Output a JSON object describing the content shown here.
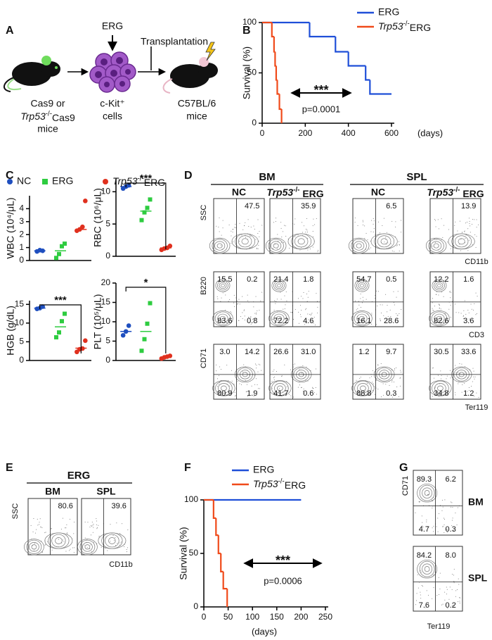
{
  "panel_labels": [
    "A",
    "B",
    "C",
    "D",
    "E",
    "F",
    "G"
  ],
  "schematic": {
    "erg": "ERG",
    "transplantation": "Transplantation",
    "donor": [
      "Cas9 or",
      "Trp53-/-Cas9",
      "mice"
    ],
    "cells": [
      "c-Kit⁺",
      "cells"
    ],
    "recipient": [
      "C57BL/6",
      "mice"
    ]
  },
  "strip_legend": [
    {
      "name": "NC",
      "color": "#1f4fbf",
      "marker": "circle"
    },
    {
      "name": "ERG",
      "color": "#2ecc40",
      "marker": "square"
    },
    {
      "name": "Trp53-/-ERG",
      "color": "#e0301e",
      "marker": "circle"
    }
  ],
  "chart_data": [
    {
      "type": "survival",
      "ylabel": "Survival (%)",
      "x_unit": "(days)",
      "annotation": "***",
      "p_value": "p=0.0001",
      "xlim": [
        0,
        600
      ],
      "xticks": [
        0,
        200,
        400,
        600
      ],
      "ylim": [
        0,
        100
      ],
      "yticks": [
        0,
        50,
        100
      ],
      "series": [
        {
          "name": "ERG",
          "color": "#1f4fd8",
          "x": [
            0,
            220,
            340,
            400,
            480,
            500,
            600
          ],
          "values": [
            100,
            86,
            71,
            57,
            43,
            29,
            29
          ]
        },
        {
          "name": "Trp53-/-ERG",
          "color": "#f04a1a",
          "x": [
            0,
            45,
            55,
            60,
            65,
            70,
            80,
            90
          ],
          "values": [
            100,
            86,
            71,
            57,
            43,
            29,
            14,
            0
          ]
        }
      ]
    },
    {
      "type": "strip",
      "ylabel": "WBC (10⁴/μL)",
      "ylim": [
        0,
        5
      ],
      "yticks": [
        0,
        1,
        2,
        3,
        4
      ],
      "groups": [
        {
          "color": "#1f4fbf",
          "marker": "circle",
          "values": [
            0.7,
            0.8,
            0.75
          ],
          "mean": 0.75
        },
        {
          "color": "#2ecc40",
          "marker": "square",
          "values": [
            0.2,
            0.5,
            1.1,
            1.3
          ],
          "mean": 0.75
        },
        {
          "color": "#e0301e",
          "marker": "circle",
          "values": [
            2.3,
            2.4,
            2.6,
            4.6
          ],
          "mean": 2.4
        }
      ]
    },
    {
      "type": "strip",
      "ylabel": "RBC (10⁶/μL)",
      "ylim": [
        0,
        12
      ],
      "yticks": [
        0,
        5,
        10
      ],
      "significance": "***",
      "groups": [
        {
          "color": "#1f4fbf",
          "marker": "circle",
          "values": [
            10.5,
            10.8,
            11.0
          ],
          "mean": 10.8
        },
        {
          "color": "#2ecc40",
          "marker": "square",
          "values": [
            5.6,
            6.8,
            7.5,
            8.8
          ],
          "mean": 7
        },
        {
          "color": "#e0301e",
          "marker": "circle",
          "values": [
            1.0,
            1.2,
            1.3,
            1.6
          ],
          "mean": 1.3
        }
      ]
    },
    {
      "type": "strip",
      "ylabel": "HGB (g/dL)",
      "ylim": [
        0,
        16
      ],
      "yticks": [
        0,
        5,
        10,
        15
      ],
      "significance": "***",
      "groups": [
        {
          "color": "#1f4fbf",
          "marker": "circle",
          "values": [
            13.8,
            14.0,
            14.4
          ],
          "mean": 14
        },
        {
          "color": "#2ecc40",
          "marker": "square",
          "values": [
            6.2,
            7.5,
            10.5,
            12.5
          ],
          "mean": 9
        },
        {
          "color": "#e0301e",
          "marker": "circle",
          "values": [
            2.3,
            3.0,
            3.2,
            5.3
          ],
          "mean": 3.3
        }
      ]
    },
    {
      "type": "strip",
      "ylabel": "PLT (10⁵/μL)",
      "ylim": [
        0,
        20
      ],
      "yticks": [
        0,
        5,
        10,
        15,
        20
      ],
      "significance": "*",
      "groups": [
        {
          "color": "#1f4fbf",
          "marker": "circle",
          "values": [
            6.5,
            7.5,
            9
          ],
          "mean": 7.5
        },
        {
          "color": "#2ecc40",
          "marker": "square",
          "values": [
            2.5,
            5.5,
            9.5,
            14.8
          ],
          "mean": 7.5
        },
        {
          "color": "#e0301e",
          "marker": "circle",
          "values": [
            0.5,
            0.8,
            1,
            1.2
          ],
          "mean": 0.8
        }
      ]
    },
    {
      "type": "survival",
      "ylabel": "Survival (%)",
      "x_unit": "(days)",
      "annotation": "***",
      "p_value": "p=0.0006",
      "xlim": [
        0,
        250
      ],
      "xticks": [
        0,
        50,
        100,
        150,
        200,
        250
      ],
      "ylim": [
        0,
        100
      ],
      "yticks": [
        0,
        50,
        100
      ],
      "series": [
        {
          "name": "ERG",
          "color": "#1f4fd8",
          "x": [
            0,
            200
          ],
          "values": [
            100,
            100
          ]
        },
        {
          "name": "Trp53-/-ERG",
          "color": "#f04a1a",
          "x": [
            0,
            20,
            25,
            30,
            35,
            40,
            48
          ],
          "values": [
            100,
            83,
            67,
            50,
            33,
            17,
            0
          ]
        }
      ]
    }
  ],
  "flow_d": {
    "groups": [
      {
        "name": "BM",
        "columns": [
          "NC",
          "Trp53-/- ERG"
        ]
      },
      {
        "name": "SPL",
        "columns": [
          "NC",
          "Trp53-/- ERG"
        ]
      }
    ],
    "rows": [
      {
        "y_label": "SSC",
        "x_label": "CD11b",
        "values": [
          [
            "47.5"
          ],
          [
            "35.9"
          ],
          [
            "6.5"
          ],
          [
            "13.9"
          ]
        ]
      },
      {
        "y_label": "B220",
        "x_label": "CD3",
        "values": [
          [
            "15.5",
            "0.2",
            "83.6",
            "0.8"
          ],
          [
            "21.4",
            "1.8",
            "72.2",
            "4.6"
          ],
          [
            "54.7",
            "0.5",
            "16.1",
            "28.6"
          ],
          [
            "12.2",
            "1.6",
            "82.6",
            "3.6"
          ]
        ]
      },
      {
        "y_label": "CD71",
        "x_label": "Ter119",
        "values": [
          [
            "3.0",
            "14.2",
            "80.9",
            "1.9"
          ],
          [
            "26.6",
            "31.0",
            "41.7",
            "0.6"
          ],
          [
            "1.2",
            "9.7",
            "88.8",
            "0.3"
          ],
          [
            "30.5",
            "33.6",
            "34.8",
            "1.2"
          ]
        ]
      }
    ]
  },
  "flow_e": {
    "title": "ERG",
    "y_label": "SSC",
    "x_label": "CD11b",
    "panels": [
      {
        "name": "BM",
        "value": "80.6"
      },
      {
        "name": "SPL",
        "value": "39.6"
      }
    ]
  },
  "flow_g": {
    "y_label": "CD71",
    "x_label": "Ter119",
    "panels": [
      {
        "name": "BM",
        "values": [
          "89.3",
          "6.2",
          "4.7",
          "0.3"
        ]
      },
      {
        "name": "SPL",
        "values": [
          "84.2",
          "8.0",
          "7.6",
          "0.2"
        ]
      }
    ]
  }
}
